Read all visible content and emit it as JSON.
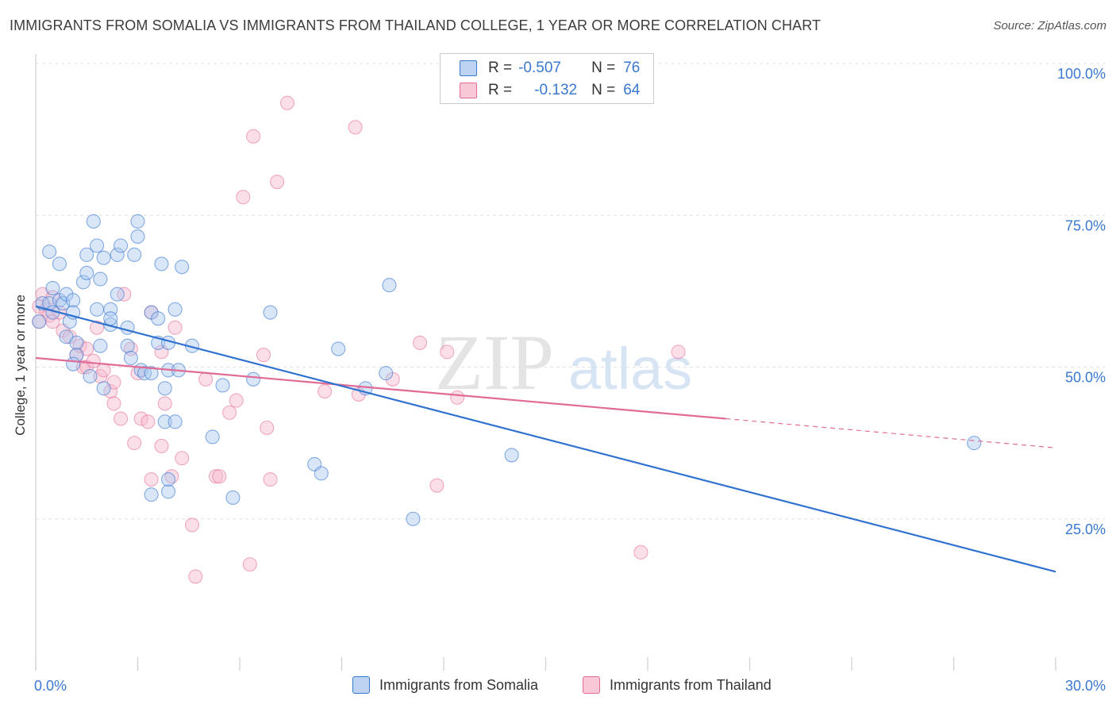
{
  "title": "IMMIGRANTS FROM SOMALIA VS IMMIGRANTS FROM THAILAND COLLEGE, 1 YEAR OR MORE CORRELATION CHART",
  "source": "Source: ZipAtlas.com",
  "watermark": {
    "zip": "ZIP",
    "atlas": "atlas"
  },
  "legend": {
    "r_label": "R =",
    "n_label": "N =",
    "somalia": {
      "r": "-0.507",
      "n": "76"
    },
    "thailand": {
      "r": "-0.132",
      "n": "64"
    }
  },
  "colors": {
    "somalia_fill": "#a9c7ef",
    "somalia_stroke": "#3a78d0",
    "somalia_line": "#2f72cf",
    "thailand_fill": "#f7b9cd",
    "thailand_stroke": "#e36a96",
    "thailand_line": "#e06b96",
    "axis_text": "#3a78d0"
  },
  "chart_data": {
    "type": "scatter",
    "ylabel": "College, 1 year or more",
    "xlabel": "",
    "xlim": [
      0,
      30
    ],
    "ylim": [
      0,
      105
    ],
    "x_tick_labels": [
      "0.0%",
      "30.0%"
    ],
    "y_ticks": [
      25,
      50,
      75,
      100
    ],
    "y_tick_labels": [
      "25.0%",
      "50.0%",
      "75.0%",
      "100.0%"
    ],
    "grid": true,
    "series": [
      {
        "name": "Immigrants from Somalia",
        "r": -0.507,
        "n": 76,
        "trend": {
          "x": [
            0,
            30
          ],
          "y": [
            60,
            16.3
          ]
        },
        "points": [
          [
            0.1,
            57.5
          ],
          [
            0.2,
            60.5
          ],
          [
            0.4,
            60.5
          ],
          [
            0.4,
            69
          ],
          [
            0.5,
            59
          ],
          [
            0.5,
            63
          ],
          [
            0.7,
            61
          ],
          [
            0.7,
            67
          ],
          [
            0.8,
            60.5
          ],
          [
            0.9,
            55
          ],
          [
            0.9,
            62
          ],
          [
            1,
            57.5
          ],
          [
            1.1,
            61
          ],
          [
            1.1,
            59
          ],
          [
            1.2,
            54
          ],
          [
            1.2,
            52
          ],
          [
            1.1,
            50.5
          ],
          [
            1.4,
            64
          ],
          [
            1.5,
            65.5
          ],
          [
            1.5,
            68.5
          ],
          [
            1.6,
            48.5
          ],
          [
            1.7,
            74
          ],
          [
            1.8,
            70
          ],
          [
            1.8,
            59.5
          ],
          [
            1.9,
            53.5
          ],
          [
            1.9,
            64.5
          ],
          [
            2,
            68
          ],
          [
            2,
            46.5
          ],
          [
            2.2,
            57
          ],
          [
            2.2,
            59.5
          ],
          [
            2.2,
            58
          ],
          [
            2.4,
            68.5
          ],
          [
            2.4,
            62
          ],
          [
            2.5,
            70
          ],
          [
            2.7,
            56.5
          ],
          [
            2.7,
            53.5
          ],
          [
            2.8,
            51.5
          ],
          [
            2.9,
            68.5
          ],
          [
            3,
            74
          ],
          [
            3,
            71.5
          ],
          [
            3.1,
            49.5
          ],
          [
            3.2,
            49
          ],
          [
            3.4,
            49
          ],
          [
            3.4,
            59
          ],
          [
            3.4,
            29
          ],
          [
            3.6,
            58
          ],
          [
            3.6,
            54
          ],
          [
            3.7,
            67
          ],
          [
            3.8,
            46.5
          ],
          [
            3.8,
            41
          ],
          [
            3.9,
            54
          ],
          [
            3.9,
            29.5
          ],
          [
            3.9,
            31.5
          ],
          [
            3.9,
            49.5
          ],
          [
            4.1,
            59.5
          ],
          [
            4.1,
            41
          ],
          [
            4.2,
            49.5
          ],
          [
            4.3,
            66.5
          ],
          [
            4.6,
            53.5
          ],
          [
            5.2,
            38.5
          ],
          [
            5.5,
            47
          ],
          [
            5.8,
            28.5
          ],
          [
            6.4,
            48
          ],
          [
            6.9,
            59
          ],
          [
            8.2,
            34
          ],
          [
            8.4,
            32.5
          ],
          [
            8.9,
            53
          ],
          [
            9.7,
            46.5
          ],
          [
            10.3,
            49
          ],
          [
            10.4,
            63.5
          ],
          [
            11.1,
            25
          ],
          [
            14,
            35.5
          ],
          [
            27.6,
            37.5
          ]
        ]
      },
      {
        "name": "Immigrants from Thailand",
        "r": -0.132,
        "n": 64,
        "trend": {
          "x": [
            0,
            20.3
          ],
          "y": [
            51.5,
            41.5
          ]
        },
        "trend_dashed": {
          "x": [
            20.3,
            30
          ],
          "y": [
            41.5,
            36.7
          ]
        },
        "points": [
          [
            0.1,
            57.5
          ],
          [
            0.1,
            60
          ],
          [
            0.2,
            62
          ],
          [
            0.3,
            59.5
          ],
          [
            0.4,
            58.5
          ],
          [
            0.5,
            61.5
          ],
          [
            0.5,
            57.5
          ],
          [
            0.7,
            59
          ],
          [
            0.8,
            56
          ],
          [
            1,
            55
          ],
          [
            1.2,
            52
          ],
          [
            1.3,
            53.5
          ],
          [
            1.4,
            50
          ],
          [
            1.5,
            50
          ],
          [
            1.5,
            53
          ],
          [
            1.7,
            51
          ],
          [
            1.8,
            56.5
          ],
          [
            1.9,
            48.5
          ],
          [
            2,
            49.5
          ],
          [
            2.2,
            46
          ],
          [
            2.3,
            47.5
          ],
          [
            2.3,
            44
          ],
          [
            2.5,
            41.5
          ],
          [
            2.6,
            62
          ],
          [
            2.8,
            53
          ],
          [
            2.9,
            37.5
          ],
          [
            3,
            49
          ],
          [
            3.1,
            41.5
          ],
          [
            3.3,
            41
          ],
          [
            3.4,
            31.5
          ],
          [
            3.4,
            59
          ],
          [
            3.7,
            52.5
          ],
          [
            3.7,
            37
          ],
          [
            3.8,
            44
          ],
          [
            4,
            32
          ],
          [
            4.1,
            56.5
          ],
          [
            4.3,
            35
          ],
          [
            4.6,
            24
          ],
          [
            4.7,
            15.5
          ],
          [
            5,
            48
          ],
          [
            5.3,
            32
          ],
          [
            5.4,
            32
          ],
          [
            5.7,
            42.5
          ],
          [
            5.9,
            44.5
          ],
          [
            6.1,
            78
          ],
          [
            6.3,
            17.5
          ],
          [
            6.4,
            88
          ],
          [
            6.7,
            52
          ],
          [
            6.8,
            40
          ],
          [
            6.9,
            31.5
          ],
          [
            7.1,
            80.5
          ],
          [
            7.4,
            93.5
          ],
          [
            8.5,
            46
          ],
          [
            9.4,
            89.5
          ],
          [
            9.5,
            45.5
          ],
          [
            10.5,
            48
          ],
          [
            11.3,
            54
          ],
          [
            11.8,
            30.5
          ],
          [
            12.1,
            52.5
          ],
          [
            12.4,
            45
          ],
          [
            17.8,
            19.5
          ],
          [
            18.9,
            52.5
          ]
        ]
      }
    ]
  }
}
